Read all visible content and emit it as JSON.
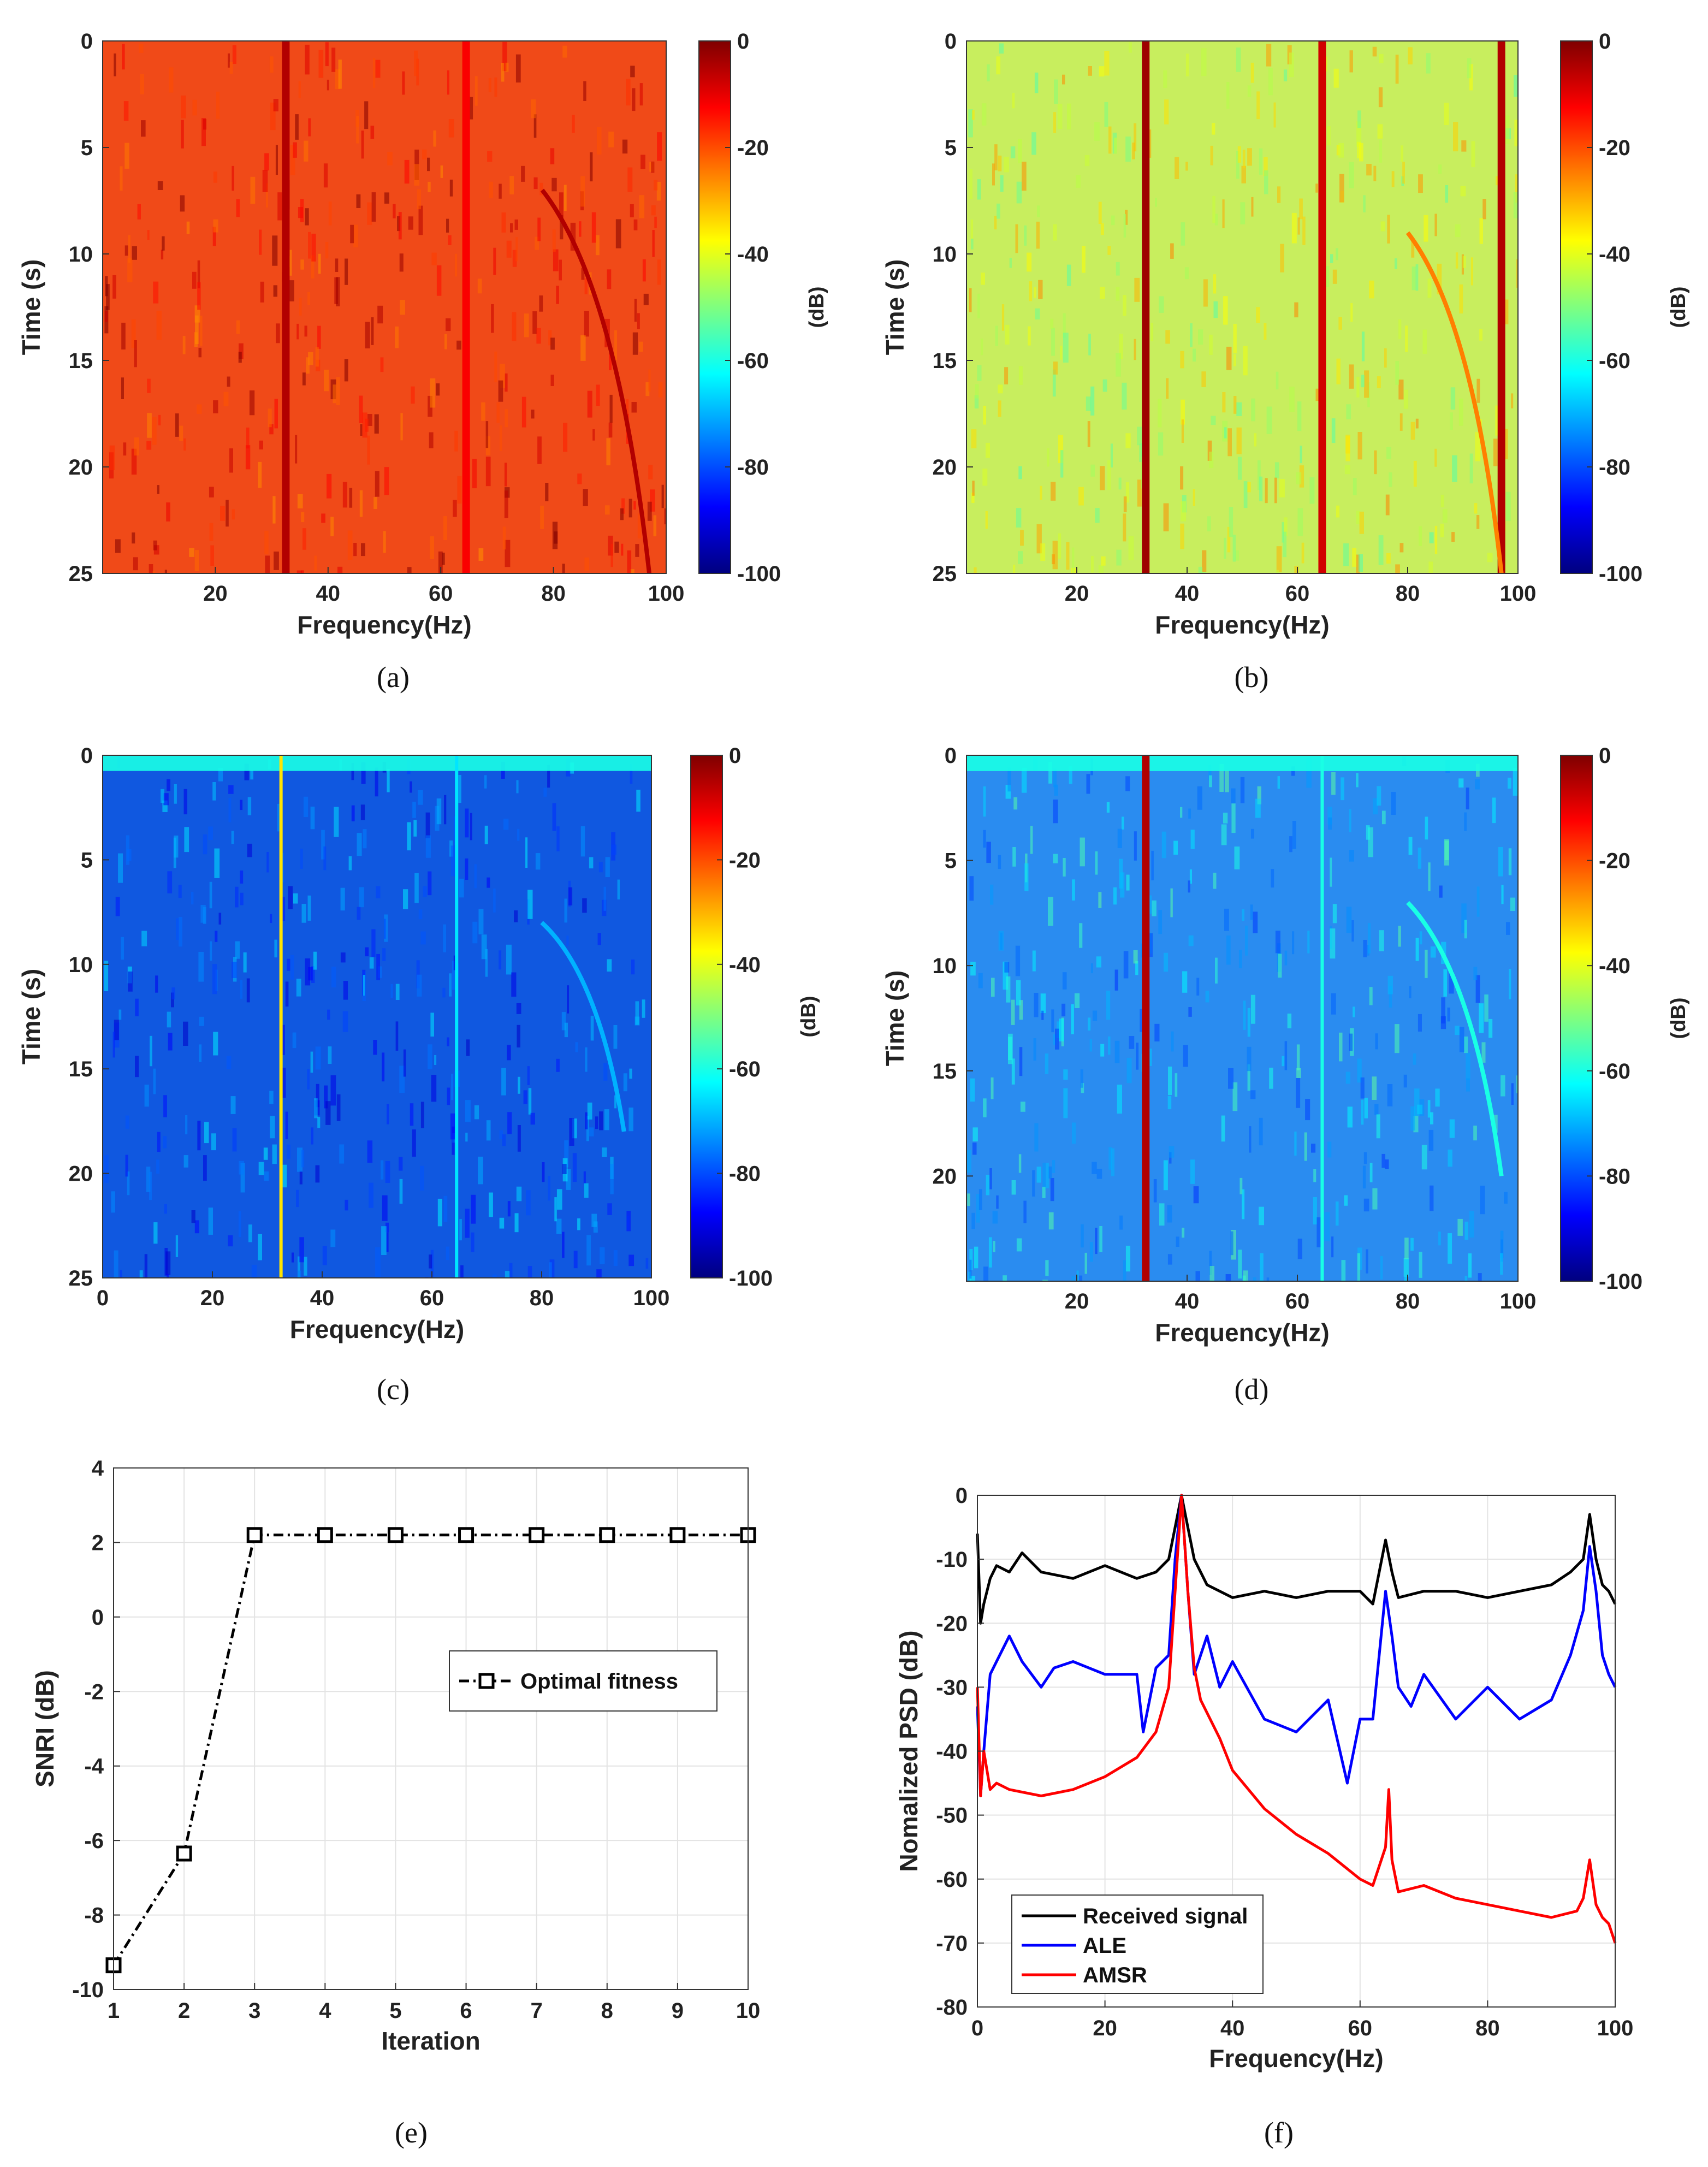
{
  "colorbar": {
    "ticks": [
      "0",
      "-20",
      "-40",
      "-60",
      "-80",
      "-100"
    ],
    "label": "(dB)",
    "stops": [
      "#00007f",
      "#0000ff",
      "#007fff",
      "#00ffff",
      "#7fff7f",
      "#ffff00",
      "#ff7f00",
      "#ff0000",
      "#7f0000"
    ]
  },
  "chart_data": [
    {
      "id": "a",
      "type": "heatmap",
      "caption": "(a)",
      "xlabel": "Frequency(Hz)",
      "ylabel": "Time (s)",
      "xlim": [
        0,
        100
      ],
      "ylim": [
        0,
        25
      ],
      "xticks": [
        "20",
        "40",
        "60",
        "80",
        "100"
      ],
      "yticks": [
        "0",
        "5",
        "10",
        "15",
        "20",
        "25"
      ],
      "zlim": [
        -100,
        0
      ],
      "zlabel": "(dB)",
      "background": "#f04a18",
      "features": [
        {
          "kind": "tonal",
          "freq": 32.5,
          "level_db": -5
        },
        {
          "kind": "tonal",
          "freq": 64.5,
          "level_db": -12
        },
        {
          "kind": "chirp",
          "from": [
            78,
            7
          ],
          "to": [
            97,
            25
          ],
          "level_db": -5
        }
      ]
    },
    {
      "id": "b",
      "type": "heatmap",
      "caption": "(b)",
      "xlabel": "Frequency(Hz)",
      "ylabel": "Time (s)",
      "xlim": [
        0,
        100
      ],
      "ylim": [
        0,
        25
      ],
      "xticks": [
        "20",
        "40",
        "60",
        "80",
        "100"
      ],
      "yticks": [
        "0",
        "5",
        "10",
        "15",
        "20",
        "25"
      ],
      "zlim": [
        -100,
        0
      ],
      "zlabel": "(dB)",
      "background": "#c8ee5e",
      "features": [
        {
          "kind": "tonal",
          "freq": 32.5,
          "level_db": -3
        },
        {
          "kind": "tonal",
          "freq": 64.5,
          "level_db": -8
        },
        {
          "kind": "tonal",
          "freq": 97,
          "level_db": -5
        },
        {
          "kind": "chirp",
          "from": [
            80,
            9
          ],
          "to": [
            97,
            25
          ],
          "level_db": -25
        }
      ]
    },
    {
      "id": "c",
      "type": "heatmap",
      "caption": "(c)",
      "xlabel": "Frequency(Hz)",
      "ylabel": "Time (s)",
      "xlim": [
        0,
        100
      ],
      "ylim": [
        0,
        25
      ],
      "xticks": [
        "0",
        "20",
        "40",
        "60",
        "80",
        "100"
      ],
      "yticks": [
        "0",
        "5",
        "10",
        "15",
        "20",
        "25"
      ],
      "zlim": [
        -100,
        0
      ],
      "zlabel": "(dB)",
      "background": "#1058e0",
      "features": [
        {
          "kind": "tonal",
          "freq": 32.5,
          "level_db": -35
        },
        {
          "kind": "tonal",
          "freq": 64.5,
          "level_db": -65
        },
        {
          "kind": "chirp",
          "from": [
            80,
            8
          ],
          "to": [
            95,
            18
          ],
          "level_db": -70
        }
      ]
    },
    {
      "id": "d",
      "type": "heatmap",
      "caption": "(d)",
      "xlabel": "Frequency(Hz)",
      "ylabel": "Time (s)",
      "xlim": [
        0,
        100
      ],
      "ylim": [
        0,
        25
      ],
      "xticks": [
        "20",
        "40",
        "60",
        "80",
        "100"
      ],
      "yticks": [
        "0",
        "5",
        "10",
        "15",
        "20"
      ],
      "zlim": [
        -100,
        0
      ],
      "zlabel": "(dB)",
      "background": "#2a8cf0",
      "features": [
        {
          "kind": "tonal",
          "freq": 32.5,
          "level_db": -5
        },
        {
          "kind": "tonal",
          "freq": 64.5,
          "level_db": -60
        },
        {
          "kind": "chirp",
          "from": [
            80,
            7
          ],
          "to": [
            97,
            20
          ],
          "level_db": -60
        }
      ]
    },
    {
      "id": "e",
      "type": "line",
      "caption": "(e)",
      "xlabel": "Iteration",
      "ylabel": "SNRI (dB)",
      "xlim": [
        1,
        10
      ],
      "ylim": [
        -10,
        4
      ],
      "xticks": [
        "1",
        "2",
        "3",
        "4",
        "5",
        "6",
        "7",
        "8",
        "9",
        "10"
      ],
      "yticks": [
        "4",
        "2",
        "0",
        "-2",
        "-4",
        "-6",
        "-8",
        "-10"
      ],
      "grid": true,
      "legend_position": "center-right",
      "series": [
        {
          "name": "Optimal fitness",
          "color": "#000000",
          "marker": "square",
          "style": "dash-dot",
          "x": [
            1,
            2,
            3,
            4,
            5,
            6,
            7,
            8,
            9,
            10
          ],
          "y": [
            -9.35,
            -6.35,
            2.2,
            2.2,
            2.2,
            2.2,
            2.2,
            2.2,
            2.2,
            2.2
          ]
        }
      ]
    },
    {
      "id": "f",
      "type": "line",
      "caption": "(f)",
      "xlabel": "Frequency(Hz)",
      "ylabel": "Nomalized PSD (dB)",
      "xlim": [
        0,
        100
      ],
      "ylim": [
        -80,
        0
      ],
      "xticks": [
        "0",
        "20",
        "40",
        "60",
        "80",
        "100"
      ],
      "yticks": [
        "0",
        "-10",
        "-20",
        "-30",
        "-40",
        "-50",
        "-60",
        "-70",
        "-80"
      ],
      "grid": true,
      "legend_position": "bottom-left",
      "series": [
        {
          "name": "Received signal",
          "color": "#000000",
          "x": [
            0,
            0.5,
            1,
            2,
            3,
            5,
            7,
            10,
            15,
            20,
            25,
            28,
            30,
            31,
            32,
            33,
            34,
            36,
            40,
            45,
            50,
            55,
            60,
            62,
            64,
            65,
            66,
            70,
            75,
            80,
            85,
            90,
            93,
            95,
            96,
            97,
            98,
            99,
            100
          ],
          "y": [
            -6,
            -20,
            -17,
            -13,
            -11,
            -12,
            -9,
            -12,
            -13,
            -11,
            -13,
            -12,
            -10,
            -5,
            0,
            -5,
            -10,
            -14,
            -16,
            -15,
            -16,
            -15,
            -15,
            -17,
            -7,
            -12,
            -16,
            -15,
            -15,
            -16,
            -15,
            -14,
            -12,
            -10,
            -3,
            -10,
            -14,
            -15,
            -17
          ]
        },
        {
          "name": "ALE",
          "color": "#0000ff",
          "x": [
            0,
            0.5,
            1,
            2,
            3,
            5,
            7,
            10,
            12,
            15,
            20,
            25,
            26,
            28,
            30,
            31,
            32,
            33,
            34,
            36,
            38,
            40,
            45,
            50,
            55,
            58,
            60,
            62,
            64,
            65,
            66,
            68,
            70,
            75,
            80,
            85,
            90,
            93,
            95,
            96,
            97,
            98,
            99,
            100
          ],
          "y": [
            -33,
            -47,
            -40,
            -28,
            -26,
            -22,
            -26,
            -30,
            -27,
            -26,
            -28,
            -28,
            -37,
            -27,
            -25,
            -10,
            0,
            -15,
            -28,
            -22,
            -30,
            -26,
            -35,
            -37,
            -32,
            -45,
            -35,
            -35,
            -15,
            -22,
            -30,
            -33,
            -28,
            -35,
            -30,
            -35,
            -32,
            -25,
            -18,
            -8,
            -15,
            -25,
            -28,
            -30
          ]
        },
        {
          "name": "AMSR",
          "color": "#ff0000",
          "x": [
            0,
            0.5,
            1,
            2,
            3,
            5,
            10,
            15,
            20,
            25,
            28,
            30,
            31,
            32,
            33,
            34,
            35,
            38,
            40,
            45,
            50,
            55,
            60,
            62,
            64,
            64.5,
            65,
            66,
            70,
            75,
            80,
            85,
            90,
            94,
            95,
            96,
            97,
            98,
            99,
            100
          ],
          "y": [
            -30,
            -47,
            -40,
            -46,
            -45,
            -46,
            -47,
            -46,
            -44,
            -41,
            -37,
            -30,
            -15,
            0,
            -15,
            -27,
            -32,
            -38,
            -43,
            -49,
            -53,
            -56,
            -60,
            -61,
            -55,
            -46,
            -57,
            -62,
            -61,
            -63,
            -64,
            -65,
            -66,
            -65,
            -63,
            -57,
            -64,
            -66,
            -67,
            -70
          ]
        }
      ]
    }
  ]
}
